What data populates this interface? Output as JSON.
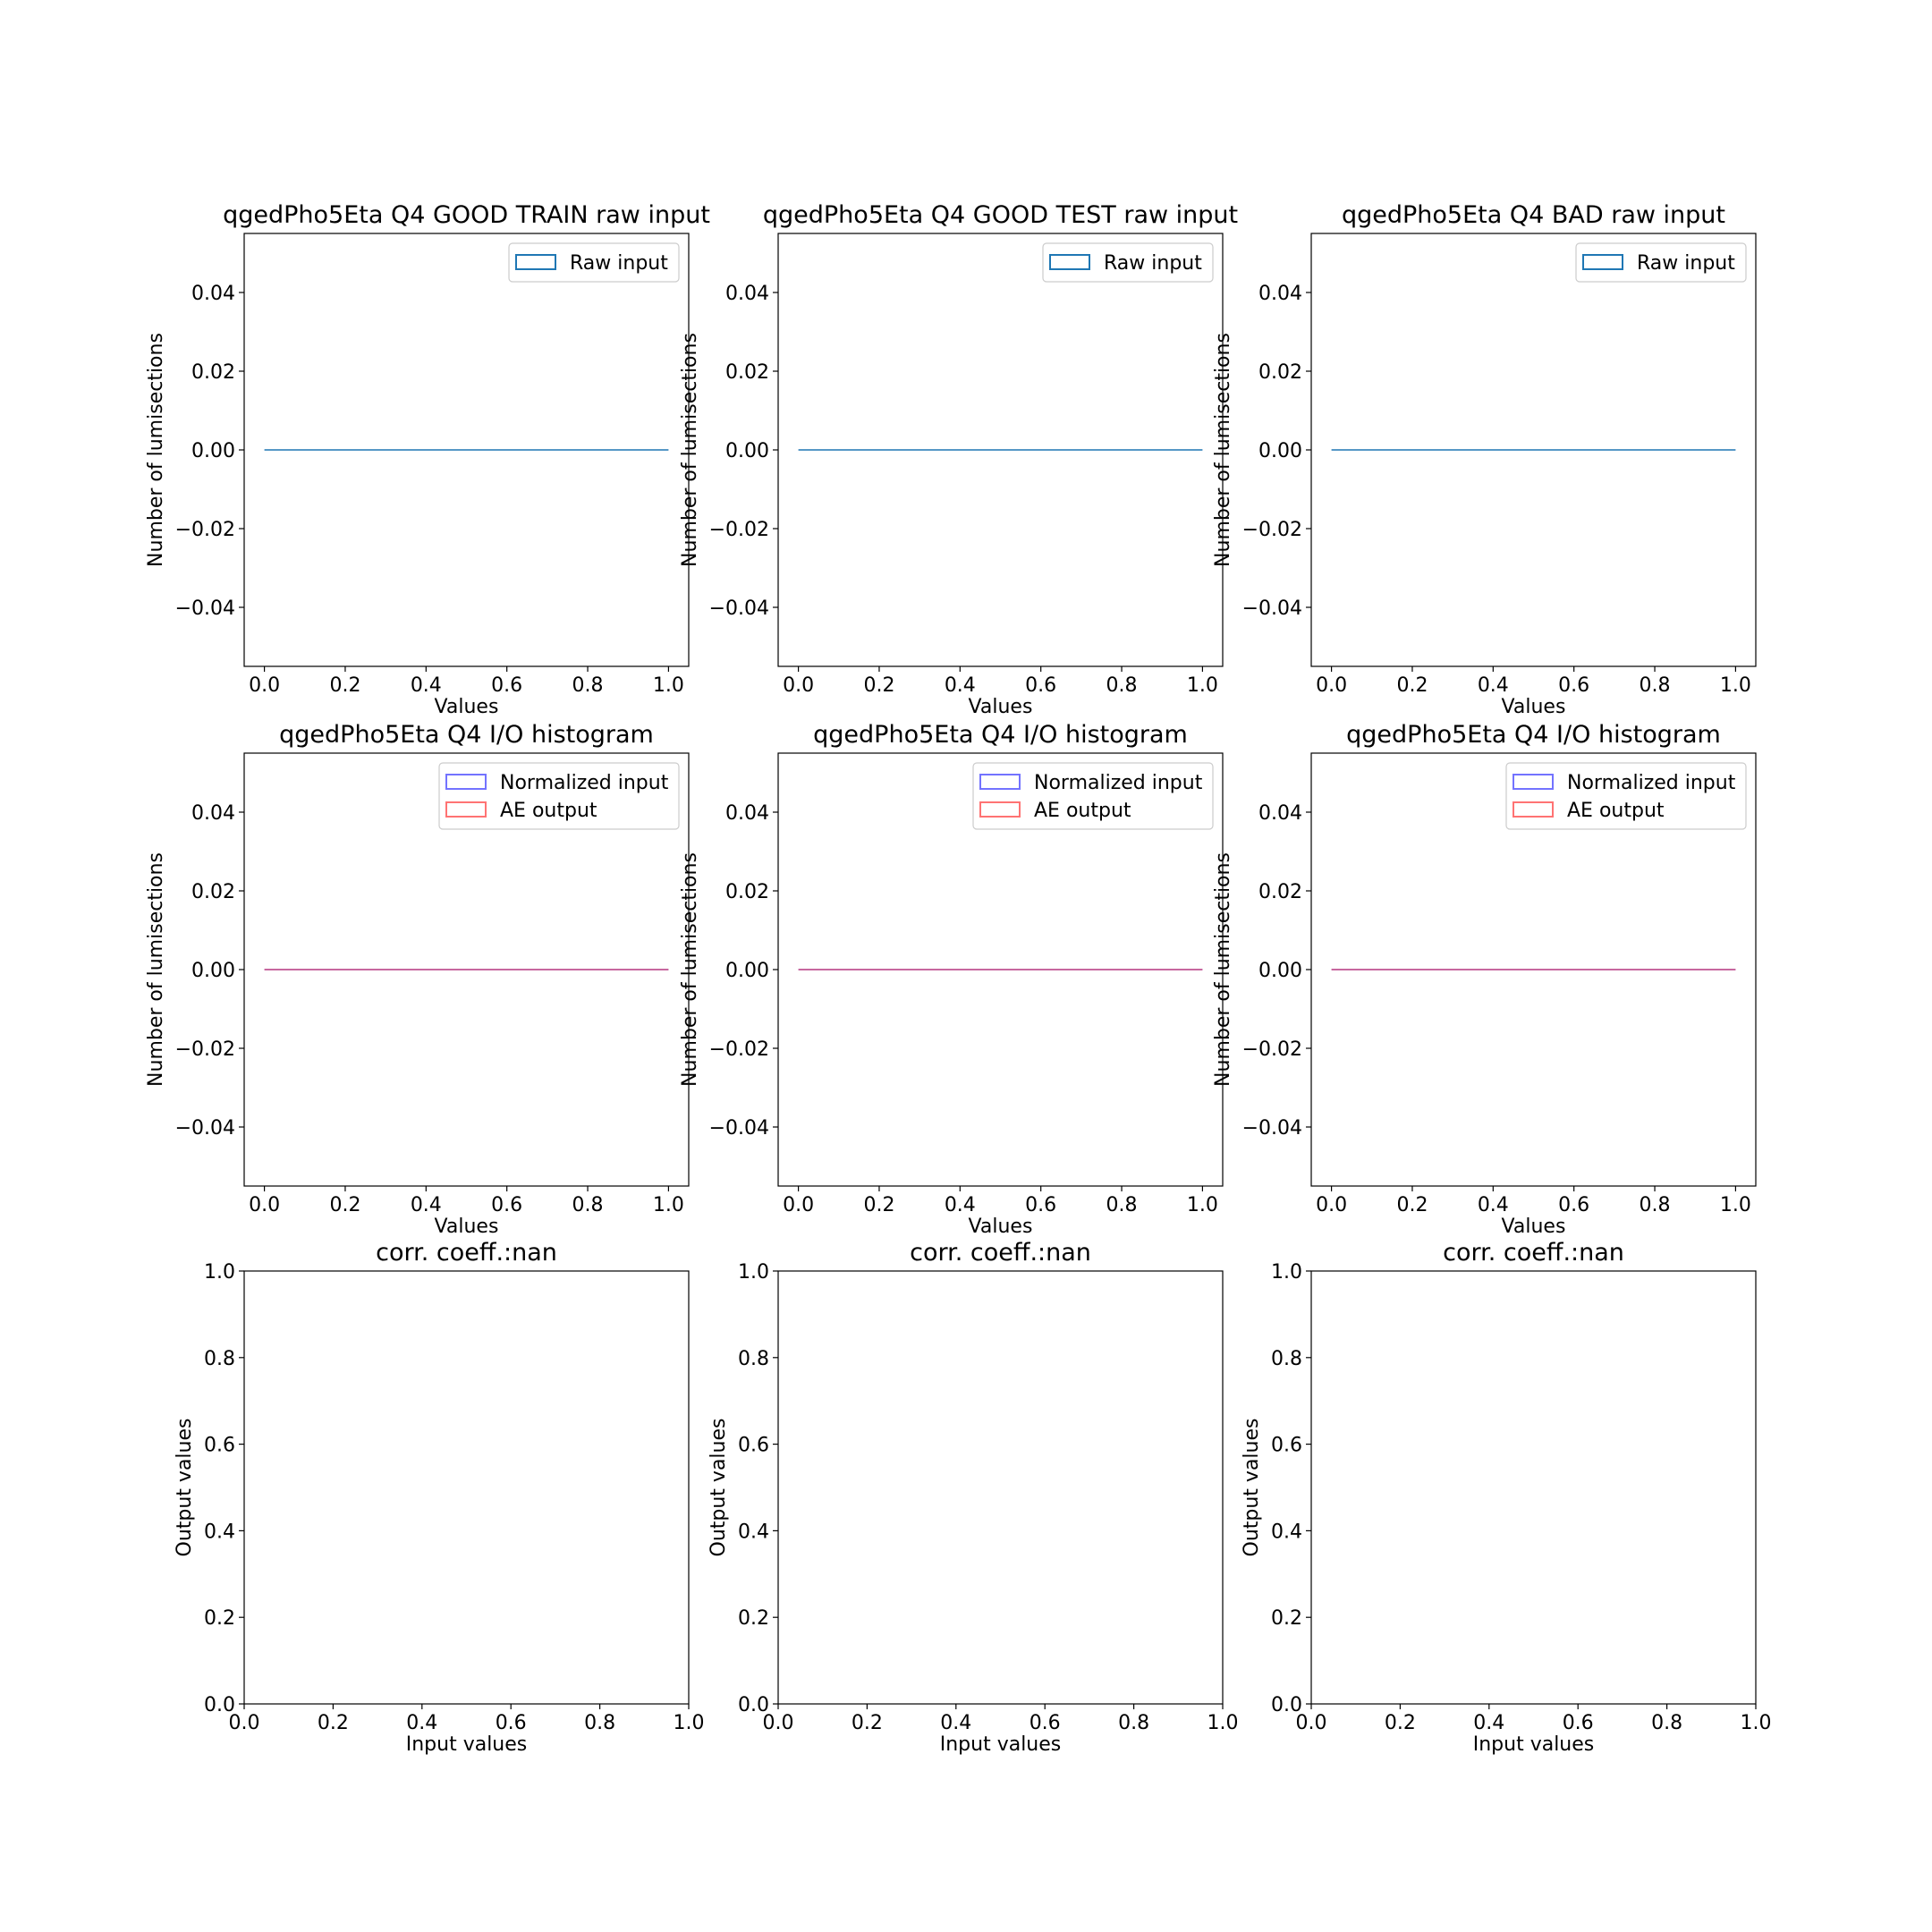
{
  "colors": {
    "raw": "#1f77b4",
    "normalized": "#0000ff",
    "ae_output": "#ff0000",
    "overlap_line": "#990066"
  },
  "chart_data": [
    {
      "type": "histogram",
      "title": "qgedPho5Eta Q4 GOOD TRAIN raw input",
      "xlabel": "Values",
      "ylabel": "Number of lumisections",
      "xlim": [
        -0.05,
        1.05
      ],
      "ylim": [
        -0.055,
        0.055
      ],
      "xticks": [
        "0.0",
        "0.2",
        "0.4",
        "0.6",
        "0.8",
        "1.0"
      ],
      "yticks": [
        "−0.04",
        "−0.02",
        "0.00",
        "0.02",
        "0.04"
      ],
      "legend": "top-right",
      "series": [
        {
          "name": "Raw input",
          "color_key": "raw",
          "x": [
            0.0,
            1.0
          ],
          "y": [
            0.0,
            0.0
          ]
        }
      ]
    },
    {
      "type": "histogram",
      "title": "qgedPho5Eta Q4 GOOD TEST raw input",
      "xlabel": "Values",
      "ylabel": "Number of lumisections",
      "xlim": [
        -0.05,
        1.05
      ],
      "ylim": [
        -0.055,
        0.055
      ],
      "xticks": [
        "0.0",
        "0.2",
        "0.4",
        "0.6",
        "0.8",
        "1.0"
      ],
      "yticks": [
        "−0.04",
        "−0.02",
        "0.00",
        "0.02",
        "0.04"
      ],
      "legend": "top-right",
      "series": [
        {
          "name": "Raw input",
          "color_key": "raw",
          "x": [
            0.0,
            1.0
          ],
          "y": [
            0.0,
            0.0
          ]
        }
      ]
    },
    {
      "type": "histogram",
      "title": "qgedPho5Eta Q4 BAD raw input",
      "xlabel": "Values",
      "ylabel": "Number of lumisections",
      "xlim": [
        -0.05,
        1.05
      ],
      "ylim": [
        -0.055,
        0.055
      ],
      "xticks": [
        "0.0",
        "0.2",
        "0.4",
        "0.6",
        "0.8",
        "1.0"
      ],
      "yticks": [
        "−0.04",
        "−0.02",
        "0.00",
        "0.02",
        "0.04"
      ],
      "legend": "top-right",
      "series": [
        {
          "name": "Raw input",
          "color_key": "raw",
          "x": [
            0.0,
            1.0
          ],
          "y": [
            0.0,
            0.0
          ]
        }
      ]
    },
    {
      "type": "histogram",
      "title": "qgedPho5Eta Q4 I/O histogram",
      "xlabel": "Values",
      "ylabel": "Number of lumisections",
      "xlim": [
        -0.05,
        1.05
      ],
      "ylim": [
        -0.055,
        0.055
      ],
      "xticks": [
        "0.0",
        "0.2",
        "0.4",
        "0.6",
        "0.8",
        "1.0"
      ],
      "yticks": [
        "−0.04",
        "−0.02",
        "0.00",
        "0.02",
        "0.04"
      ],
      "legend": "top-right",
      "series": [
        {
          "name": "Normalized input",
          "color_key": "normalized",
          "x": [
            0.0,
            1.0
          ],
          "y": [
            0.0,
            0.0
          ]
        },
        {
          "name": "AE output",
          "color_key": "ae_output",
          "x": [
            0.0,
            1.0
          ],
          "y": [
            0.0,
            0.0
          ]
        }
      ]
    },
    {
      "type": "histogram",
      "title": "qgedPho5Eta Q4 I/O histogram",
      "xlabel": "Values",
      "ylabel": "Number of lumisections",
      "xlim": [
        -0.05,
        1.05
      ],
      "ylim": [
        -0.055,
        0.055
      ],
      "xticks": [
        "0.0",
        "0.2",
        "0.4",
        "0.6",
        "0.8",
        "1.0"
      ],
      "yticks": [
        "−0.04",
        "−0.02",
        "0.00",
        "0.02",
        "0.04"
      ],
      "legend": "top-right",
      "series": [
        {
          "name": "Normalized input",
          "color_key": "normalized",
          "x": [
            0.0,
            1.0
          ],
          "y": [
            0.0,
            0.0
          ]
        },
        {
          "name": "AE output",
          "color_key": "ae_output",
          "x": [
            0.0,
            1.0
          ],
          "y": [
            0.0,
            0.0
          ]
        }
      ]
    },
    {
      "type": "histogram",
      "title": "qgedPho5Eta Q4 I/O histogram",
      "xlabel": "Values",
      "ylabel": "Number of lumisections",
      "xlim": [
        -0.05,
        1.05
      ],
      "ylim": [
        -0.055,
        0.055
      ],
      "xticks": [
        "0.0",
        "0.2",
        "0.4",
        "0.6",
        "0.8",
        "1.0"
      ],
      "yticks": [
        "−0.04",
        "−0.02",
        "0.00",
        "0.02",
        "0.04"
      ],
      "legend": "top-right",
      "series": [
        {
          "name": "Normalized input",
          "color_key": "normalized",
          "x": [
            0.0,
            1.0
          ],
          "y": [
            0.0,
            0.0
          ]
        },
        {
          "name": "AE output",
          "color_key": "ae_output",
          "x": [
            0.0,
            1.0
          ],
          "y": [
            0.0,
            0.0
          ]
        }
      ]
    },
    {
      "type": "scatter",
      "title": "corr. coeff.:nan",
      "xlabel": "Input values",
      "ylabel": "Output values",
      "xlim": [
        0.0,
        1.0
      ],
      "ylim": [
        0.0,
        1.0
      ],
      "xticks": [
        "0.0",
        "0.2",
        "0.4",
        "0.6",
        "0.8",
        "1.0"
      ],
      "yticks": [
        "0.0",
        "0.2",
        "0.4",
        "0.6",
        "0.8",
        "1.0"
      ],
      "series": []
    },
    {
      "type": "scatter",
      "title": "corr. coeff.:nan",
      "xlabel": "Input values",
      "ylabel": "Output values",
      "xlim": [
        0.0,
        1.0
      ],
      "ylim": [
        0.0,
        1.0
      ],
      "xticks": [
        "0.0",
        "0.2",
        "0.4",
        "0.6",
        "0.8",
        "1.0"
      ],
      "yticks": [
        "0.0",
        "0.2",
        "0.4",
        "0.6",
        "0.8",
        "1.0"
      ],
      "series": []
    },
    {
      "type": "scatter",
      "title": "corr. coeff.:nan",
      "xlabel": "Input values",
      "ylabel": "Output values",
      "xlim": [
        0.0,
        1.0
      ],
      "ylim": [
        0.0,
        1.0
      ],
      "xticks": [
        "0.0",
        "0.2",
        "0.4",
        "0.6",
        "0.8",
        "1.0"
      ],
      "yticks": [
        "0.0",
        "0.2",
        "0.4",
        "0.6",
        "0.8",
        "1.0"
      ],
      "series": []
    }
  ]
}
